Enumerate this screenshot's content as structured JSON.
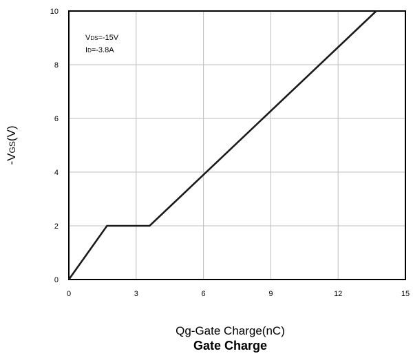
{
  "chart_data": {
    "type": "line",
    "title": "Gate Charge",
    "xlabel": "Qg-Gate Charge(nC)",
    "ylabel": {
      "prefix": "-V",
      "sub": "GS",
      "suffix": "(V)"
    },
    "xlim": [
      0,
      15
    ],
    "ylim": [
      0,
      10
    ],
    "xticks": [
      0,
      3,
      6,
      9,
      12,
      15
    ],
    "yticks": [
      0,
      2,
      4,
      6,
      8,
      10
    ],
    "grid": true,
    "annotations": [
      {
        "prefix": "V",
        "sub": "DS",
        "suffix": "=-15V"
      },
      {
        "prefix": "I",
        "sub": "D",
        "suffix": "=-3.8A"
      }
    ],
    "series": [
      {
        "x": [
          0,
          1.7,
          3.6,
          13.7
        ],
        "y": [
          0,
          2.0,
          2.0,
          10.0
        ]
      }
    ]
  }
}
